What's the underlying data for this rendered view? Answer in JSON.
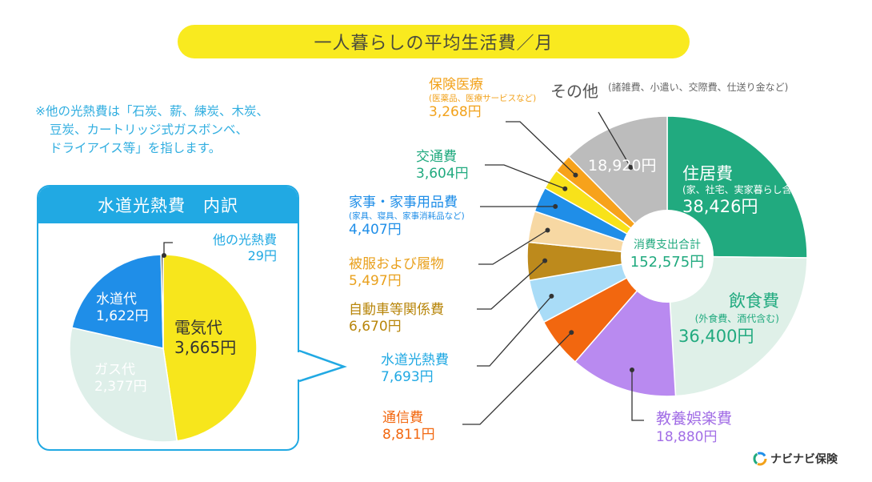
{
  "title": "一人暮らしの平均生活費／月",
  "note": {
    "line1": "※他の光熱費は「石炭、薪、練炭、木炭、",
    "line2": "豆炭、カートリッジ式ガスボンベ、",
    "line3": "ドライアイス等」を指します。"
  },
  "inset_title": "水道光熱費　内訳",
  "center_label": {
    "line1": "消費支出合計",
    "line2": "152,575円"
  },
  "brand": "ナビナビ保険",
  "chart_data": [
    {
      "type": "pie",
      "title": "一人暮らしの平均生活費／月",
      "total_label": "消費支出合計",
      "total": 152575,
      "unit": "円",
      "slices": [
        {
          "name": "住居費",
          "note": "(家、社宅、実家暮らし含む)",
          "value": 38426,
          "value_label": "38,426円",
          "color": "#21aa7f"
        },
        {
          "name": "飲食費",
          "note": "(外食費、酒代含む)",
          "value": 36400,
          "value_label": "36,400円",
          "color": "#dff0e8"
        },
        {
          "name": "教養娯楽費",
          "note": "",
          "value": 18880,
          "value_label": "18,880円",
          "color": "#b98af0"
        },
        {
          "name": "通信費",
          "note": "",
          "value": 8811,
          "value_label": "8,811円",
          "color": "#f2670f"
        },
        {
          "name": "水道光熱費",
          "note": "",
          "value": 7693,
          "value_label": "7,693円",
          "color": "#a9dcf7"
        },
        {
          "name": "自動車等関係費",
          "note": "",
          "value": 6670,
          "value_label": "6,670円",
          "color": "#bd8a1c"
        },
        {
          "name": "被服および履物",
          "note": "",
          "value": 5497,
          "value_label": "5,497円",
          "color": "#f7d8a3"
        },
        {
          "name": "家事・家事用品費",
          "note": "(家具、寝具、家事消耗品など)",
          "value": 4407,
          "value_label": "4,407円",
          "color": "#1f8ee8"
        },
        {
          "name": "交通費",
          "note": "",
          "value": 3604,
          "value_label": "3,604円",
          "color": "#f8e21a"
        },
        {
          "name": "保険医療",
          "note": "(医薬品、医療サービスなど)",
          "value": 3268,
          "value_label": "3,268円",
          "color": "#f7a21b"
        },
        {
          "name": "その他",
          "note": "(諸雑費、小遣い、交際費、仕送り金など)",
          "value": 18920,
          "value_label": "18,920円",
          "color": "#bcbcbc"
        }
      ]
    },
    {
      "type": "pie",
      "title": "水道光熱費　内訳",
      "unit": "円",
      "slices": [
        {
          "name": "電気代",
          "value": 3665,
          "value_label": "3,665円",
          "color": "#f7e61c"
        },
        {
          "name": "ガス代",
          "value": 2377,
          "value_label": "2,377円",
          "color": "#deefe9"
        },
        {
          "name": "水道代",
          "value": 1622,
          "value_label": "1,622円",
          "color": "#1f8ee8"
        },
        {
          "name": "他の光熱費",
          "value": 29,
          "value_label": "29円",
          "color": "#4a4a4a"
        }
      ]
    }
  ]
}
